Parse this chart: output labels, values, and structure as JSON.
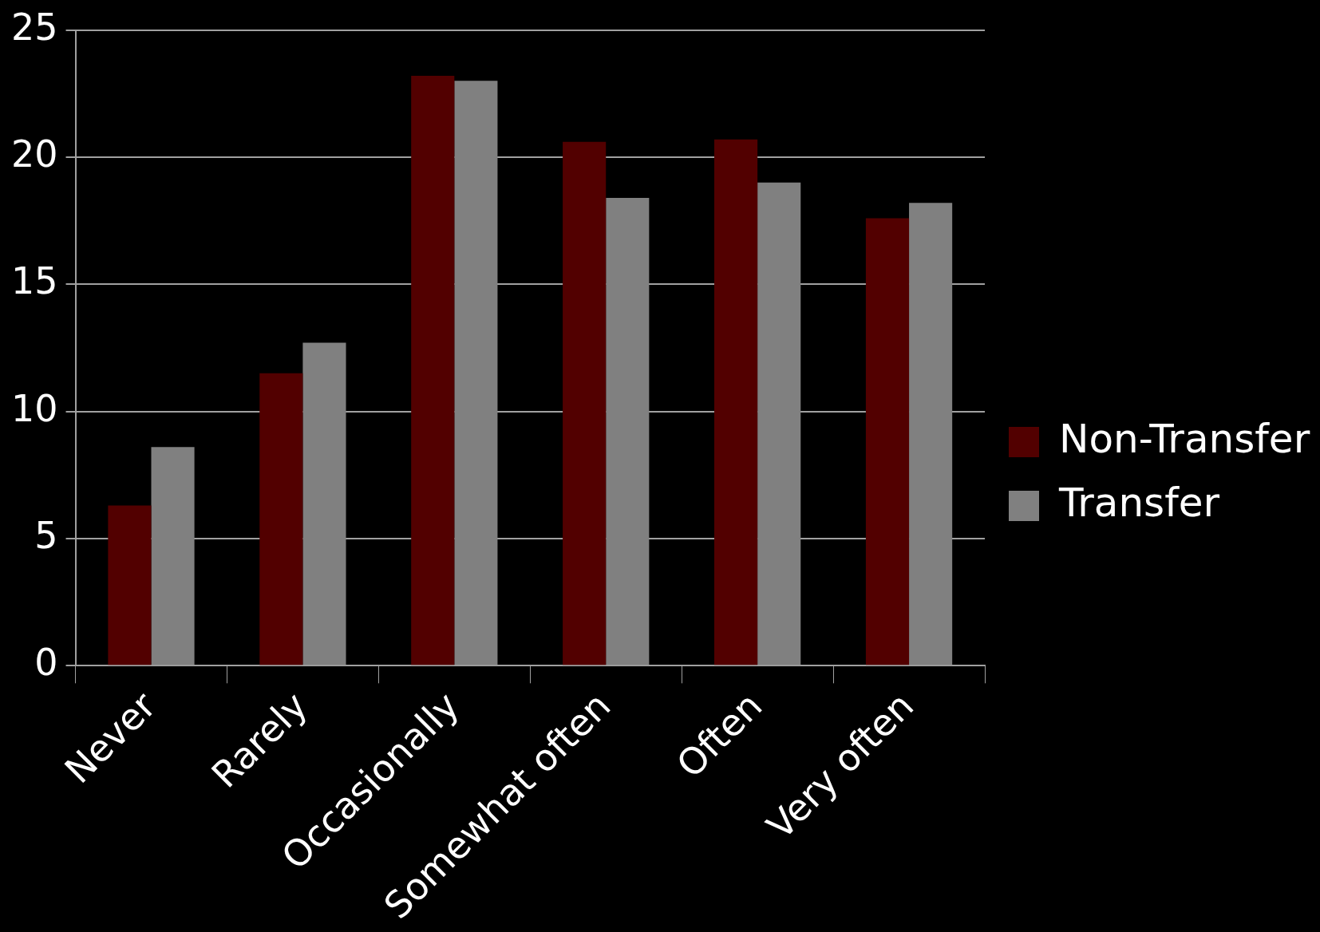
{
  "chart_data": {
    "type": "bar",
    "categories": [
      "Never",
      "Rarely",
      "Occasionally",
      "Somewhat often",
      "Often",
      "Very often"
    ],
    "series": [
      {
        "name": "Non-Transfer",
        "color": "#520000",
        "values": [
          6.3,
          11.5,
          23.2,
          20.6,
          20.7,
          17.6
        ]
      },
      {
        "name": "Transfer",
        "color": "#808080",
        "values": [
          8.6,
          12.7,
          23.0,
          18.4,
          19.0,
          18.2
        ]
      }
    ],
    "ylim": [
      0,
      25
    ],
    "yticks": [
      0,
      5,
      10,
      15,
      20,
      25
    ],
    "grid": "y",
    "legend": "right"
  }
}
